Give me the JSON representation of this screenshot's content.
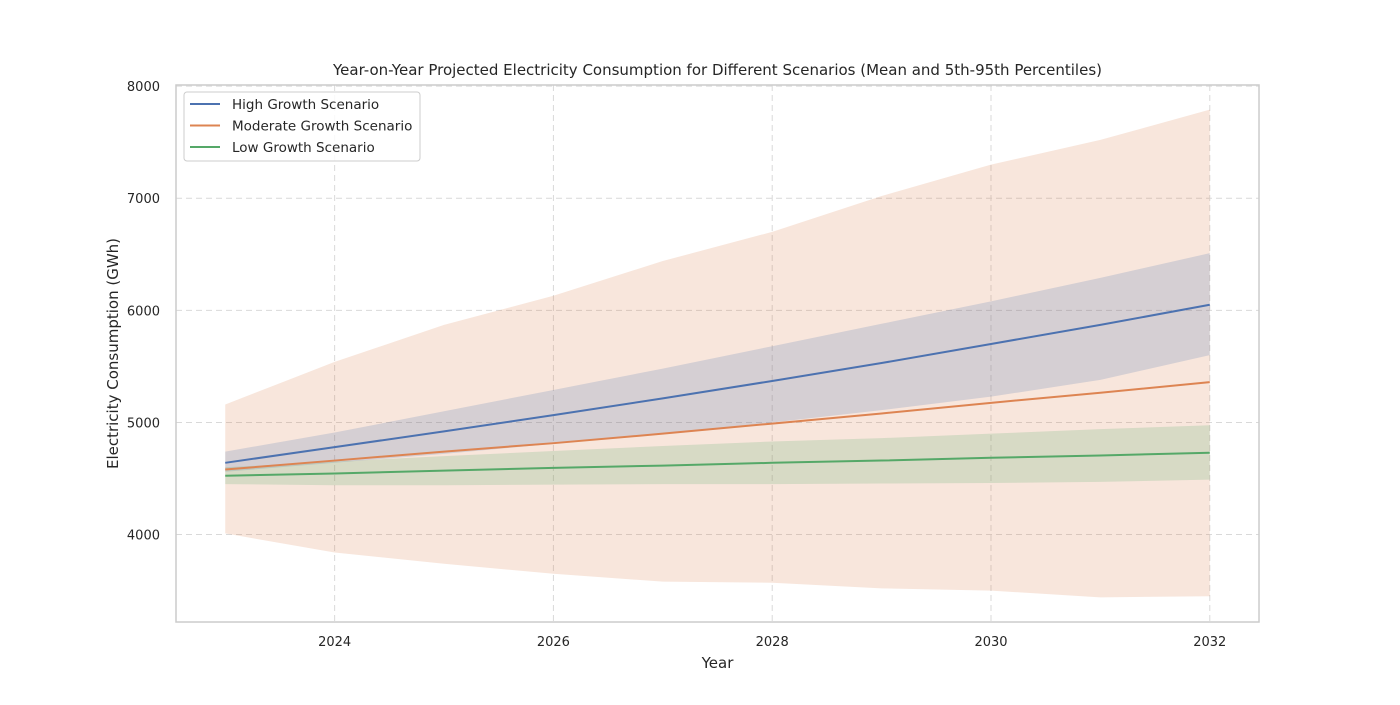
{
  "chart_data": {
    "type": "line",
    "title": "Year-on-Year Projected Electricity Consumption for Different Scenarios (Mean and 5th-95th Percentiles)",
    "xlabel": "Year",
    "ylabel": "Electricity Consumption (GWh)",
    "xlim": [
      2022.55,
      2032.45
    ],
    "ylim": [
      3220,
      8010
    ],
    "xticks": [
      2024,
      2026,
      2028,
      2030,
      2032
    ],
    "yticks": [
      4000,
      5000,
      6000,
      7000,
      8000
    ],
    "grid": true,
    "legend_position": "top-left",
    "x": [
      2023,
      2024,
      2025,
      2026,
      2027,
      2028,
      2029,
      2030,
      2031,
      2032
    ],
    "series": [
      {
        "name": "High Growth Scenario",
        "color": "#4c72b0",
        "band_color": "#4c72b0",
        "mean": [
          4640,
          4780,
          4920,
          5065,
          5215,
          5370,
          5530,
          5700,
          5870,
          6050
        ],
        "p5": [
          4560,
          4640,
          4720,
          4810,
          4900,
          5000,
          5110,
          5230,
          5380,
          5600
        ],
        "p95": [
          4740,
          4910,
          5100,
          5290,
          5480,
          5680,
          5880,
          6080,
          6290,
          6510
        ]
      },
      {
        "name": "Moderate Growth Scenario",
        "color": "#dd8452",
        "band_color": "#dd8452",
        "mean": [
          4580,
          4660,
          4740,
          4815,
          4900,
          4990,
          5080,
          5175,
          5265,
          5360
        ],
        "p5": [
          4010,
          3840,
          3740,
          3650,
          3580,
          3570,
          3520,
          3500,
          3440,
          3450
        ],
        "p95": [
          5160,
          5540,
          5870,
          6130,
          6440,
          6700,
          7020,
          7300,
          7520,
          7790
        ]
      },
      {
        "name": "Low Growth Scenario",
        "color": "#55a868",
        "band_color": "#55a868",
        "mean": [
          4525,
          4545,
          4570,
          4595,
          4615,
          4640,
          4660,
          4685,
          4705,
          4730
        ],
        "p5": [
          4450,
          4440,
          4440,
          4445,
          4450,
          4450,
          4455,
          4460,
          4470,
          4490
        ],
        "p95": [
          4600,
          4650,
          4700,
          4745,
          4790,
          4830,
          4860,
          4900,
          4940,
          4975
        ]
      }
    ]
  }
}
